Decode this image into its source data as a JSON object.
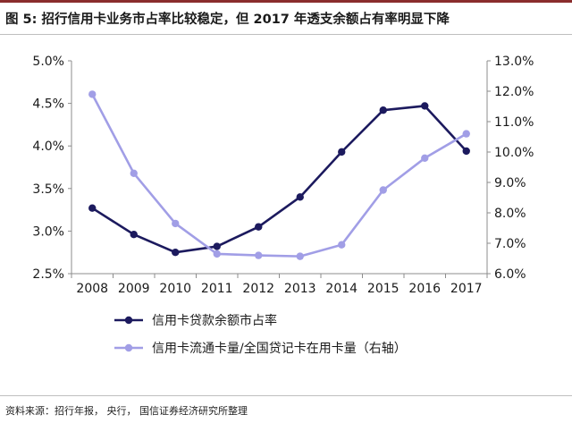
{
  "figure": {
    "caption": "图 5: 招行信用卡业务市占率比较稳定，但 2017 年透支余额占有率明显下降",
    "source": "资料来源：招行年报， 央行， 国信证券经济研究所整理"
  },
  "colors": {
    "series_left": "#1c1a5e",
    "series_right": "#a19ee6",
    "axis": "#8c8c8c",
    "header_rule": "#8a2d2d"
  },
  "chart_data": {
    "type": "line",
    "x": [
      "2008",
      "2009",
      "2010",
      "2011",
      "2012",
      "2013",
      "2014",
      "2015",
      "2016",
      "2017"
    ],
    "y_left": {
      "ticks": [
        "2.5%",
        "3.0%",
        "3.5%",
        "4.0%",
        "4.5%",
        "5.0%"
      ],
      "range": [
        2.5,
        5.0
      ]
    },
    "y_right": {
      "ticks": [
        "6.0%",
        "7.0%",
        "8.0%",
        "9.0%",
        "10.0%",
        "11.0%",
        "12.0%",
        "13.0%"
      ],
      "range": [
        6.0,
        13.0
      ]
    },
    "grid": false,
    "legend_position": "bottom",
    "series": [
      {
        "name": "信用卡贷款余额市占率",
        "axis": "left",
        "values": [
          3.27,
          2.96,
          2.75,
          2.82,
          3.05,
          3.4,
          3.93,
          4.42,
          4.47,
          3.94
        ]
      },
      {
        "name": "信用卡流通卡量/全国贷记卡在用卡量（右轴）",
        "axis": "right",
        "values": [
          11.9,
          9.3,
          7.65,
          6.65,
          6.6,
          6.57,
          6.95,
          8.75,
          9.8,
          10.6
        ]
      }
    ]
  }
}
